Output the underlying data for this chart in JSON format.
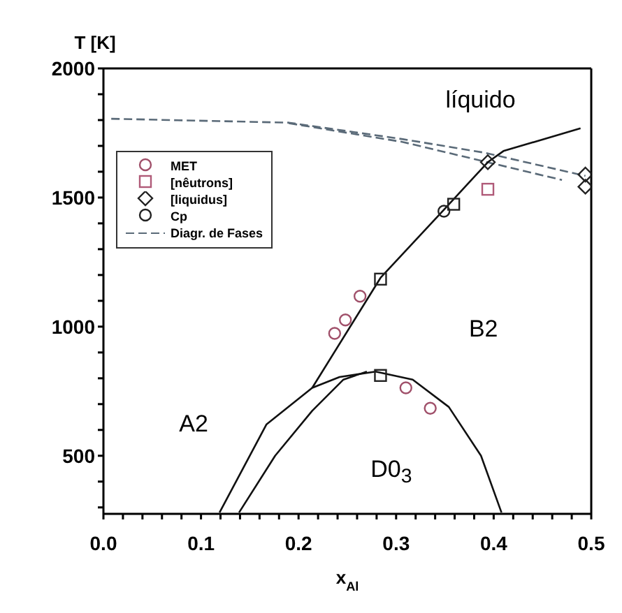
{
  "chart_data": {
    "type": "line",
    "xlabel": "x$_{Al}$",
    "ylabel": "T [K]",
    "xlim": [
      0,
      0.5
    ],
    "ylim": [
      275,
      2000
    ],
    "xticks": [
      {
        "value": 0,
        "label": "0.0"
      },
      {
        "value": 0.02,
        "label": null
      },
      {
        "value": 0.04,
        "label": null
      },
      {
        "value": 0.06,
        "label": null
      },
      {
        "value": 0.08,
        "label": null
      },
      {
        "value": 0.1,
        "label": "0.1"
      },
      {
        "value": 0.12,
        "label": null
      },
      {
        "value": 0.14,
        "label": null
      },
      {
        "value": 0.16,
        "label": null
      },
      {
        "value": 0.18,
        "label": null
      },
      {
        "value": 0.2,
        "label": "0.2"
      },
      {
        "value": 0.22,
        "label": null
      },
      {
        "value": 0.24,
        "label": null
      },
      {
        "value": 0.26,
        "label": null
      },
      {
        "value": 0.28,
        "label": null
      },
      {
        "value": 0.3,
        "label": "0.3"
      },
      {
        "value": 0.32,
        "label": null
      },
      {
        "value": 0.34,
        "label": null
      },
      {
        "value": 0.36,
        "label": null
      },
      {
        "value": 0.38,
        "label": null
      },
      {
        "value": 0.4,
        "label": "0.4"
      },
      {
        "value": 0.42,
        "label": null
      },
      {
        "value": 0.44,
        "label": null
      },
      {
        "value": 0.46,
        "label": null
      },
      {
        "value": 0.48,
        "label": null
      },
      {
        "value": 0.5,
        "label": "0.5"
      }
    ],
    "yticks": [
      {
        "value": 300,
        "label": null
      },
      {
        "value": 400,
        "label": null
      },
      500,
      {
        "value": 600,
        "label": null
      },
      {
        "value": 700,
        "label": null
      },
      {
        "value": 800,
        "label": null
      },
      {
        "value": 900,
        "label": null
      },
      1000,
      {
        "value": 1100,
        "label": null
      },
      {
        "value": 1200,
        "label": null
      },
      {
        "value": 1300,
        "label": null
      },
      {
        "value": 1400,
        "label": null
      },
      1500,
      {
        "value": 1600,
        "label": null
      },
      {
        "value": 1700,
        "label": null
      },
      {
        "value": 1800,
        "label": null
      },
      {
        "value": 1900,
        "label": null
      },
      2000
    ],
    "grid": false,
    "legend": "top left",
    "annotations": [
      "líquido",
      "B2",
      "A2",
      "D0$_{3}$"
    ],
    "series": [
      {
        "name": "MET",
        "type": "scatter",
        "marker": "circle",
        "color": "#a0506a",
        "x": [
          0.237,
          0.248,
          0.263,
          0.31,
          0.335
        ],
        "values": [
          974,
          1026,
          1118,
          763,
          684
        ]
      },
      {
        "name": "[nêutrons]",
        "type": "scatter",
        "marker": "square",
        "color": "#b05a78",
        "colors": [
          "#b05a78",
          "#222222",
          "#222222",
          "#222222"
        ],
        "x": [
          0.394,
          0.284,
          0.359,
          0.284
        ],
        "values": [
          1532,
          811,
          1474,
          1184
        ]
      },
      {
        "name": "[liquidus]",
        "type": "scatter",
        "marker": "diamond",
        "color": "#222222",
        "x": [
          0.394,
          0.494,
          0.494
        ],
        "values": [
          1637,
          1589,
          1542
        ]
      },
      {
        "name": "Cp",
        "type": "scatter",
        "marker": "circle",
        "color": "#222222",
        "x": [
          0.349
        ],
        "values": [
          1447
        ]
      },
      {
        "name": "Diagr. de Fases",
        "type": "line",
        "marker": "none",
        "line_style": "dashed",
        "color": "#5a6a78",
        "x": [
          0.008,
          0.19,
          0.307,
          0.39,
          0.494
        ],
        "values": [
          1805,
          1790,
          1726,
          1674,
          1584
        ]
      },
      {
        "type": "line",
        "marker": "none",
        "line_style": "dashed",
        "color": "#5a6a78",
        "x": [
          0.19,
          0.307,
          0.39,
          0.47
        ],
        "values": [
          1788,
          1715,
          1640,
          1568
        ]
      },
      {
        "type": "line",
        "marker": "none",
        "line_style": "solid",
        "color": "#111111",
        "x": [
          0.214,
          0.284,
          0.349,
          0.394,
          0.41,
          0.489
        ],
        "values": [
          763,
          1189,
          1453,
          1637,
          1680,
          1768
        ]
      },
      {
        "type": "line",
        "marker": "none",
        "line_style": "solid",
        "color": "#111111",
        "x": [
          0.119,
          0.167,
          0.214,
          0.242,
          0.279,
          0.317,
          0.354,
          0.387,
          0.408
        ],
        "values": [
          280,
          621,
          763,
          805,
          826,
          795,
          689,
          500,
          280
        ]
      },
      {
        "type": "line",
        "marker": "none",
        "line_style": "solid",
        "color": "#111111",
        "x": [
          0.139,
          0.176,
          0.214,
          0.246,
          0.27
        ],
        "values": [
          280,
          500,
          674,
          795,
          826
        ]
      }
    ]
  }
}
